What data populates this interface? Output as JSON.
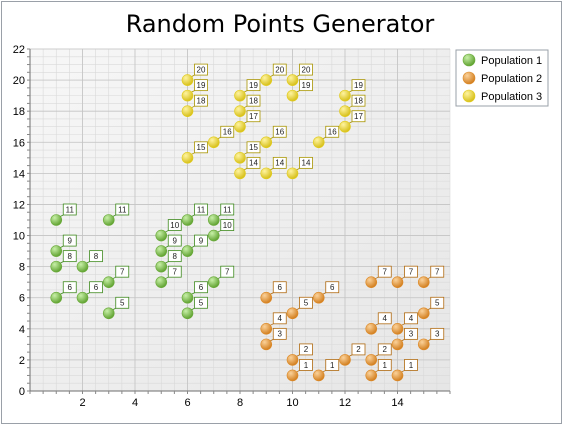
{
  "chart_data": {
    "type": "scatter",
    "title": "Random Points Generator",
    "xlabel": "",
    "ylabel": "",
    "xlim": [
      0,
      16
    ],
    "ylim": [
      0,
      22
    ],
    "x_ticks": [
      2,
      4,
      6,
      8,
      10,
      12,
      14
    ],
    "y_ticks": [
      0,
      2,
      4,
      6,
      8,
      10,
      12,
      14,
      16,
      18,
      20,
      22
    ],
    "grid": true,
    "legend_position": "top-right",
    "point_labels": "y value",
    "series": [
      {
        "name": "Population 1",
        "color": "#6aaa3a",
        "label_color": "#3f8a1e",
        "points": [
          [
            1,
            11
          ],
          [
            1,
            9
          ],
          [
            1,
            8
          ],
          [
            1,
            6
          ],
          [
            2,
            8
          ],
          [
            2,
            6
          ],
          [
            3,
            11
          ],
          [
            3,
            7
          ],
          [
            3,
            5
          ],
          [
            5,
            10
          ],
          [
            5,
            9
          ],
          [
            5,
            8
          ],
          [
            5,
            7
          ],
          [
            6,
            11
          ],
          [
            6,
            9
          ],
          [
            6,
            6
          ],
          [
            6,
            5
          ],
          [
            7,
            11
          ],
          [
            7,
            10
          ],
          [
            7,
            7
          ]
        ]
      },
      {
        "name": "Population 2",
        "color": "#dd8a28",
        "label_color": "#b06a10",
        "points": [
          [
            9,
            6
          ],
          [
            9,
            4
          ],
          [
            9,
            3
          ],
          [
            10,
            5
          ],
          [
            10,
            2
          ],
          [
            10,
            1
          ],
          [
            11,
            6
          ],
          [
            11,
            1
          ],
          [
            12,
            2
          ],
          [
            13,
            7
          ],
          [
            13,
            4
          ],
          [
            13,
            2
          ],
          [
            13,
            1
          ],
          [
            14,
            7
          ],
          [
            14,
            4
          ],
          [
            14,
            3
          ],
          [
            14,
            1
          ],
          [
            15,
            7
          ],
          [
            15,
            5
          ],
          [
            15,
            3
          ]
        ]
      },
      {
        "name": "Population 3",
        "color": "#e2cc1e",
        "label_color": "#a89400",
        "points": [
          [
            6,
            20
          ],
          [
            6,
            19
          ],
          [
            6,
            18
          ],
          [
            6,
            15
          ],
          [
            7,
            16
          ],
          [
            8,
            19
          ],
          [
            8,
            18
          ],
          [
            8,
            17
          ],
          [
            8,
            15
          ],
          [
            8,
            14
          ],
          [
            9,
            20
          ],
          [
            9,
            16
          ],
          [
            9,
            14
          ],
          [
            10,
            20
          ],
          [
            10,
            19
          ],
          [
            10,
            14
          ],
          [
            11,
            16
          ],
          [
            12,
            19
          ],
          [
            12,
            18
          ],
          [
            12,
            17
          ]
        ]
      }
    ]
  }
}
